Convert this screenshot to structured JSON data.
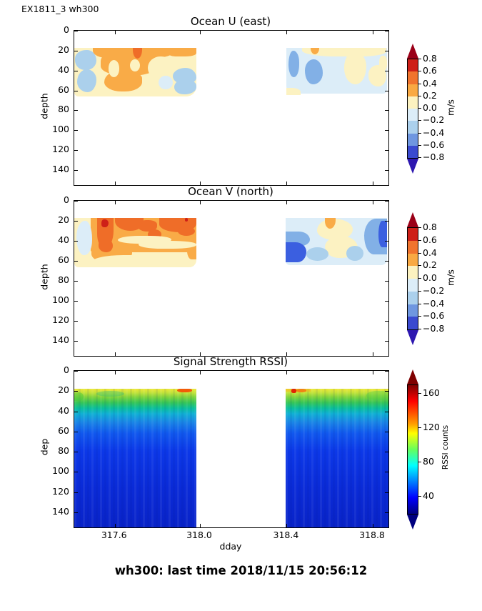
{
  "figure": {
    "id_label": "EX1811_3 wh300",
    "xlabel": "dday",
    "footer": "wh300: last time 2018/11/15 20:56:12"
  },
  "panels": [
    {
      "title": "Ocean U (east)",
      "ylabel": "depth"
    },
    {
      "title": "Ocean V (north)",
      "ylabel": "depth"
    },
    {
      "title": "Signal Strength RSSI)",
      "ylabel": "dep"
    }
  ],
  "axis": {
    "yticks": [
      "0",
      "20",
      "40",
      "60",
      "80",
      "100",
      "120",
      "140"
    ],
    "ytick_fracs": [
      0,
      12.9,
      25.8,
      38.7,
      51.6,
      64.5,
      77.4,
      90.3
    ],
    "xticks": [
      "317.6",
      "318.0",
      "318.4",
      "318.8"
    ],
    "xtick_fracs": [
      12.9,
      40.0,
      67.6,
      95.0
    ]
  },
  "colorbar_uv": {
    "label": "m/s",
    "ticks": [
      "0.8",
      "0.6",
      "0.4",
      "0.2",
      "0.0",
      "−0.2",
      "−0.4",
      "−0.6",
      "−0.8"
    ],
    "segments": [
      "#ce2018",
      "#f0742e",
      "#f9a943",
      "#fcf2c0",
      "#dcedf8",
      "#abd0ec",
      "#6f97e0",
      "#3a4ad0"
    ],
    "arrow_top": "#9a0018",
    "arrow_bottom": "#2d17b0"
  },
  "colorbar_rssi": {
    "label": "RSSI counts",
    "ticks": [
      "160",
      "120",
      "80",
      "40"
    ],
    "tick_fracs": [
      6.7,
      33.3,
      60.0,
      86.7
    ],
    "gradient": [
      [
        "0%",
        "#7f0000"
      ],
      [
        "12.5%",
        "#ff0000"
      ],
      [
        "30%",
        "#ff9c00"
      ],
      [
        "37.5%",
        "#ffff00"
      ],
      [
        "50%",
        "#66ff5c"
      ],
      [
        "62.5%",
        "#00ffff"
      ],
      [
        "87.5%",
        "#0000ff"
      ],
      [
        "100%",
        "#00007f"
      ]
    ],
    "arrow_top": "#7f0000",
    "arrow_bottom": "#00007f"
  },
  "palette": {
    "bin_p06": "#ce2018",
    "bin_p04": "#ef6d28",
    "bin_p02": "#f9ab47",
    "bin_p00": "#fcf2c2",
    "bin_m02": "#dcedf8",
    "bin_m04": "#abd0ec",
    "bin_m06": "#82b0e6",
    "m_strong": "#3b5fe0"
  },
  "rssi_gradient": [
    [
      "0%",
      "#eee838"
    ],
    [
      "3%",
      "#bfe23a"
    ],
    [
      "6%",
      "#7ed33c"
    ],
    [
      "10%",
      "#35c556"
    ],
    [
      "14%",
      "#0bbf9a"
    ],
    [
      "18%",
      "#10b0d4"
    ],
    [
      "24%",
      "#1a86e6"
    ],
    [
      "32%",
      "#1158ee"
    ],
    [
      "45%",
      "#0c38e8"
    ],
    [
      "70%",
      "#0a2bd8"
    ],
    [
      "100%",
      "#0923c8"
    ]
  ],
  "chart_data": [
    {
      "type": "heatmap",
      "title": "Ocean U (east)",
      "xlabel": "dday",
      "ylabel": "depth",
      "x_range": [
        317.41,
        318.87
      ],
      "depth_range": [
        0,
        155
      ],
      "y_axis_inverted": true,
      "xticks": [
        317.6,
        318.0,
        318.4,
        318.8
      ],
      "yticks": [
        0,
        20,
        40,
        60,
        80,
        100,
        120,
        140
      ],
      "colorbar": {
        "label": "m/s",
        "min": -0.8,
        "max": 0.8,
        "ticks": [
          0.8,
          0.6,
          0.4,
          0.2,
          0.0,
          -0.2,
          -0.4,
          -0.6,
          -0.8
        ]
      },
      "coverage": [
        {
          "dday": [
            317.41,
            317.99
          ],
          "depth": [
            17,
            66
          ]
        },
        {
          "dday": [
            318.36,
            318.86
          ],
          "depth": [
            17,
            63
          ]
        }
      ],
      "grid": {
        "depths": [
          20,
          30,
          40,
          50,
          60
        ],
        "columns": [
          {
            "dday": 317.45,
            "values": [
              0.05,
              -0.15,
              -0.15,
              -0.1,
              0.1
            ]
          },
          {
            "dday": 317.55,
            "values": [
              0.3,
              0.1,
              0.3,
              0.3,
              0.3
            ]
          },
          {
            "dday": 317.65,
            "values": [
              0.5,
              0.3,
              0.3,
              0.3,
              0.3
            ]
          },
          {
            "dday": 317.75,
            "values": [
              0.3,
              0.3,
              0.3,
              0.1,
              0.1
            ]
          },
          {
            "dday": 317.85,
            "values": [
              0.1,
              0.1,
              -0.1,
              -0.1,
              -0.1
            ]
          },
          {
            "dday": 317.95,
            "values": [
              0.3,
              0.1,
              -0.1,
              -0.1,
              0.1
            ]
          },
          {
            "dday": 318.4,
            "values": [
              -0.1,
              -0.3,
              -0.3,
              -0.3,
              0.1
            ]
          },
          {
            "dday": 318.5,
            "values": [
              0.3,
              -0.1,
              -0.3,
              -0.3,
              -0.1
            ]
          },
          {
            "dday": 318.6,
            "values": [
              0.1,
              0.1,
              -0.1,
              -0.1,
              -0.1
            ]
          },
          {
            "dday": 318.7,
            "values": [
              0.1,
              -0.1,
              -0.1,
              0.1,
              -0.1
            ]
          },
          {
            "dday": 318.8,
            "values": [
              0.1,
              -0.1,
              -0.1,
              -0.1,
              -0.1
            ]
          }
        ]
      }
    },
    {
      "type": "heatmap",
      "title": "Ocean V (north)",
      "xlabel": "dday",
      "ylabel": "depth",
      "x_range": [
        317.41,
        318.87
      ],
      "depth_range": [
        0,
        155
      ],
      "y_axis_inverted": true,
      "xticks": [
        317.6,
        318.0,
        318.4,
        318.8
      ],
      "yticks": [
        0,
        20,
        40,
        60,
        80,
        100,
        120,
        140
      ],
      "colorbar": {
        "label": "m/s",
        "min": -0.8,
        "max": 0.8,
        "ticks": [
          0.8,
          0.6,
          0.4,
          0.2,
          0.0,
          -0.2,
          -0.4,
          -0.6,
          -0.8
        ]
      },
      "coverage": [
        {
          "dday": [
            317.41,
            317.99
          ],
          "depth": [
            17,
            66
          ]
        },
        {
          "dday": [
            318.36,
            318.86
          ],
          "depth": [
            17,
            63
          ]
        }
      ],
      "grid": {
        "depths": [
          20,
          30,
          40,
          50,
          60
        ],
        "columns": [
          {
            "dday": 317.45,
            "values": [
              0.1,
              -0.1,
              -0.1,
              0.1,
              0.1
            ]
          },
          {
            "dday": 317.55,
            "values": [
              0.7,
              0.5,
              0.3,
              0.3,
              0.1
            ]
          },
          {
            "dday": 317.65,
            "values": [
              0.5,
              0.3,
              0.1,
              0.3,
              0.1
            ]
          },
          {
            "dday": 317.75,
            "values": [
              0.5,
              0.3,
              0.1,
              0.3,
              0.1
            ]
          },
          {
            "dday": 317.85,
            "values": [
              0.5,
              0.5,
              0.3,
              0.1,
              0.1
            ]
          },
          {
            "dday": 317.95,
            "values": [
              0.5,
              0.5,
              0.3,
              0.3,
              0.1
            ]
          },
          {
            "dday": 318.4,
            "values": [
              -0.1,
              -0.3,
              -0.5,
              -0.7,
              -0.5
            ]
          },
          {
            "dday": 318.5,
            "values": [
              0.3,
              0.1,
              0.1,
              -0.1,
              -0.1
            ]
          },
          {
            "dday": 318.6,
            "values": [
              -0.1,
              0.1,
              0.1,
              0.1,
              -0.1
            ]
          },
          {
            "dday": 318.7,
            "values": [
              -0.1,
              -0.1,
              -0.3,
              -0.1,
              -0.3
            ]
          },
          {
            "dday": 318.8,
            "values": [
              -0.3,
              -0.5,
              -0.3,
              -0.5,
              -0.3
            ]
          }
        ]
      }
    },
    {
      "type": "heatmap",
      "title": "Signal Strength RSSI)",
      "xlabel": "dday",
      "ylabel": "dep",
      "x_range": [
        317.41,
        318.87
      ],
      "depth_range": [
        0,
        155
      ],
      "y_axis_inverted": true,
      "xticks": [
        317.6,
        318.0,
        318.4,
        318.8
      ],
      "yticks": [
        0,
        20,
        40,
        60,
        80,
        100,
        120,
        140
      ],
      "colorbar": {
        "label": "RSSI counts",
        "min": 20,
        "max": 170,
        "ticks": [
          160,
          120,
          80,
          40
        ]
      },
      "coverage": [
        {
          "dday": [
            317.41,
            317.99
          ],
          "depth": [
            17,
            155
          ]
        },
        {
          "dday": [
            318.36,
            318.87
          ],
          "depth": [
            17,
            155
          ]
        }
      ],
      "grid": {
        "depths": [
          20,
          30,
          40,
          60,
          80,
          120
        ],
        "columns": [
          {
            "dday": 317.45,
            "values": [
              105,
              80,
              60,
              40,
              35,
              32
            ]
          },
          {
            "dday": 317.6,
            "values": [
              110,
              85,
              65,
              42,
              36,
              33
            ]
          },
          {
            "dday": 317.8,
            "values": [
              115,
              90,
              70,
              45,
              37,
              33
            ]
          },
          {
            "dday": 317.95,
            "values": [
              135,
              95,
              70,
              45,
              38,
              34
            ]
          },
          {
            "dday": 318.45,
            "values": [
              140,
              100,
              75,
              48,
              38,
              34
            ]
          },
          {
            "dday": 318.6,
            "values": [
              115,
              85,
              65,
              45,
              37,
              33
            ]
          },
          {
            "dday": 318.8,
            "values": [
              110,
              80,
              62,
              44,
              36,
              33
            ]
          }
        ]
      }
    }
  ]
}
